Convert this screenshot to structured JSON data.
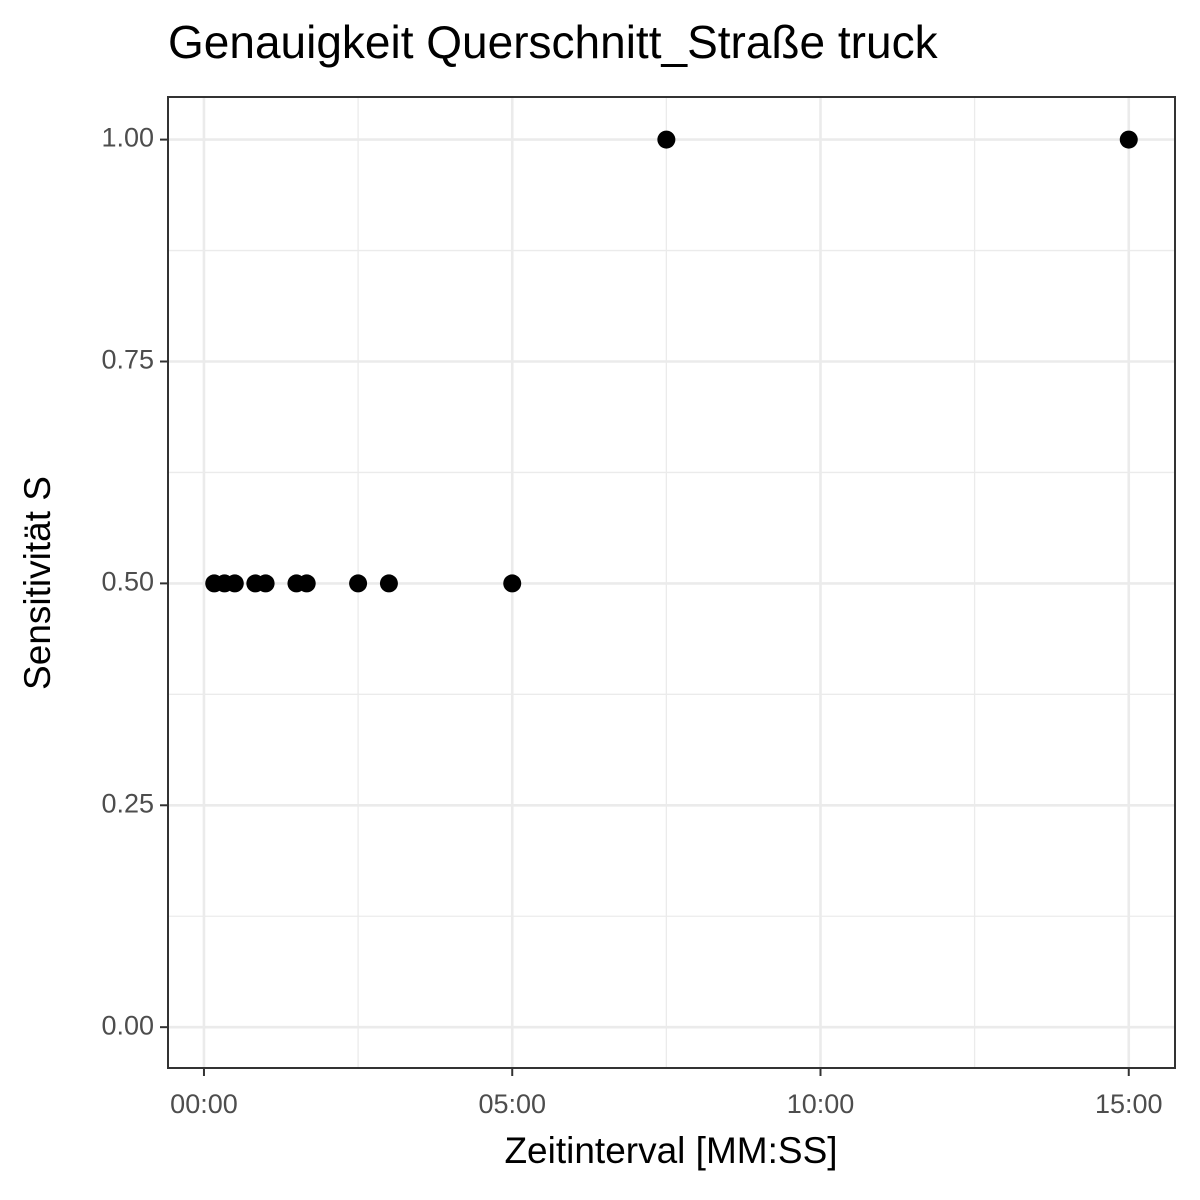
{
  "chart_data": {
    "type": "scatter",
    "title": "Genauigkeit Querschnitt_Straße truck",
    "x_label": "Zeitinterval [MM:SS]",
    "y_label": "Sensitivität S",
    "x": [
      10,
      20,
      30,
      50,
      60,
      90,
      100,
      150,
      180,
      300,
      450,
      900
    ],
    "values": [
      0.5,
      0.5,
      0.5,
      0.5,
      0.5,
      0.5,
      0.5,
      0.5,
      0.5,
      0.5,
      1.0,
      1.0
    ],
    "color": "#000000",
    "xlim": [
      -35,
      945
    ],
    "xticks": [
      {
        "value": 0,
        "label": "00:00"
      },
      {
        "value": 300,
        "label": "05:00"
      },
      {
        "value": 600,
        "label": "10:00"
      },
      {
        "value": 900,
        "label": "15:00"
      }
    ],
    "ylim": [
      -0.046,
      1.048
    ],
    "yticks": [
      {
        "value": 0,
        "label": "0.00"
      },
      {
        "value": 0.25,
        "label": "0.25"
      },
      {
        "value": 0.5,
        "label": "0.50"
      },
      {
        "value": 0.75,
        "label": "0.75"
      },
      {
        "value": 1,
        "label": "1.00"
      }
    ],
    "grid": true,
    "minor_grid": true
  }
}
